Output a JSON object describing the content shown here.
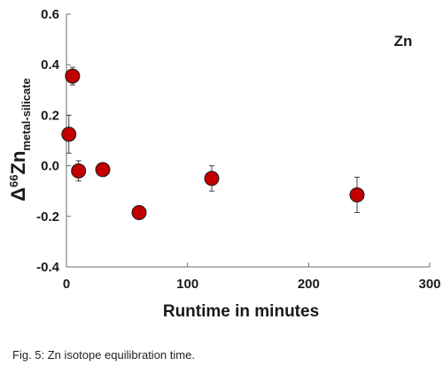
{
  "chart_data": {
    "type": "scatter",
    "title": "",
    "annotation": "Zn",
    "xlabel": "Runtime in minutes",
    "ylabel": {
      "delta": "Δ",
      "superscript": "66",
      "element": "Zn",
      "subscript": "metal-silicate"
    },
    "xlim": [
      0,
      300
    ],
    "ylim": [
      -0.4,
      0.6
    ],
    "x_ticks": [
      0,
      100,
      200,
      300
    ],
    "y_ticks": [
      -0.4,
      -0.2,
      0.0,
      0.2,
      0.4,
      0.6
    ],
    "x_tick_labels": [
      "0",
      "100",
      "200",
      "300"
    ],
    "y_tick_labels": [
      "-0.4",
      "-0.2",
      "0.0",
      "0.2",
      "0.4",
      "0.6"
    ],
    "grid": false,
    "marker_color": "#c00000",
    "points": [
      {
        "x": 2,
        "y": 0.125,
        "err": 0.075
      },
      {
        "x": 5,
        "y": 0.355,
        "err": 0.035
      },
      {
        "x": 10,
        "y": -0.02,
        "err": 0.04
      },
      {
        "x": 30,
        "y": -0.015,
        "err": 0.0
      },
      {
        "x": 60,
        "y": -0.185,
        "err": 0.0
      },
      {
        "x": 120,
        "y": -0.05,
        "err": 0.05
      },
      {
        "x": 240,
        "y": -0.115,
        "err": 0.07
      }
    ]
  },
  "caption": "Fig. 5: Zn isotope equilibration time."
}
